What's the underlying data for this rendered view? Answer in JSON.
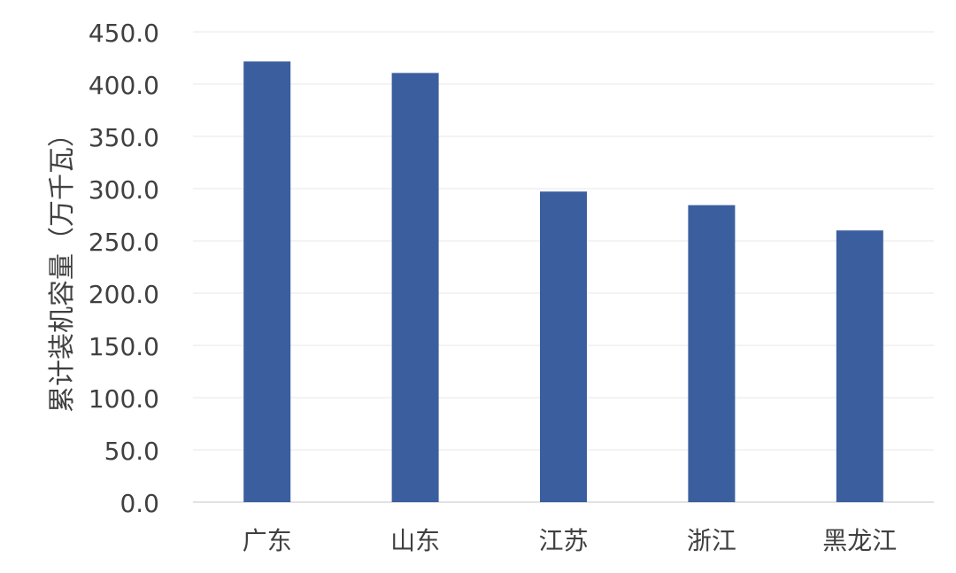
{
  "chart_data": {
    "type": "bar",
    "title": "",
    "xlabel": "",
    "ylabel": "累计装机容量（万千瓦）",
    "categories": [
      "广东",
      "山东",
      "江苏",
      "浙江",
      "黑龙江"
    ],
    "values": [
      421.7,
      410.7,
      297.2,
      284.2,
      260.0
    ],
    "ylim": [
      0,
      450
    ],
    "yticks": [
      "0.0",
      "50.0",
      "100.0",
      "150.0",
      "200.0",
      "250.0",
      "300.0",
      "350.0",
      "400.0",
      "450.0"
    ],
    "grid": true,
    "legend": "none",
    "colors": {
      "bar": "#3B5F9E",
      "grid": "#EFEFEF"
    }
  }
}
